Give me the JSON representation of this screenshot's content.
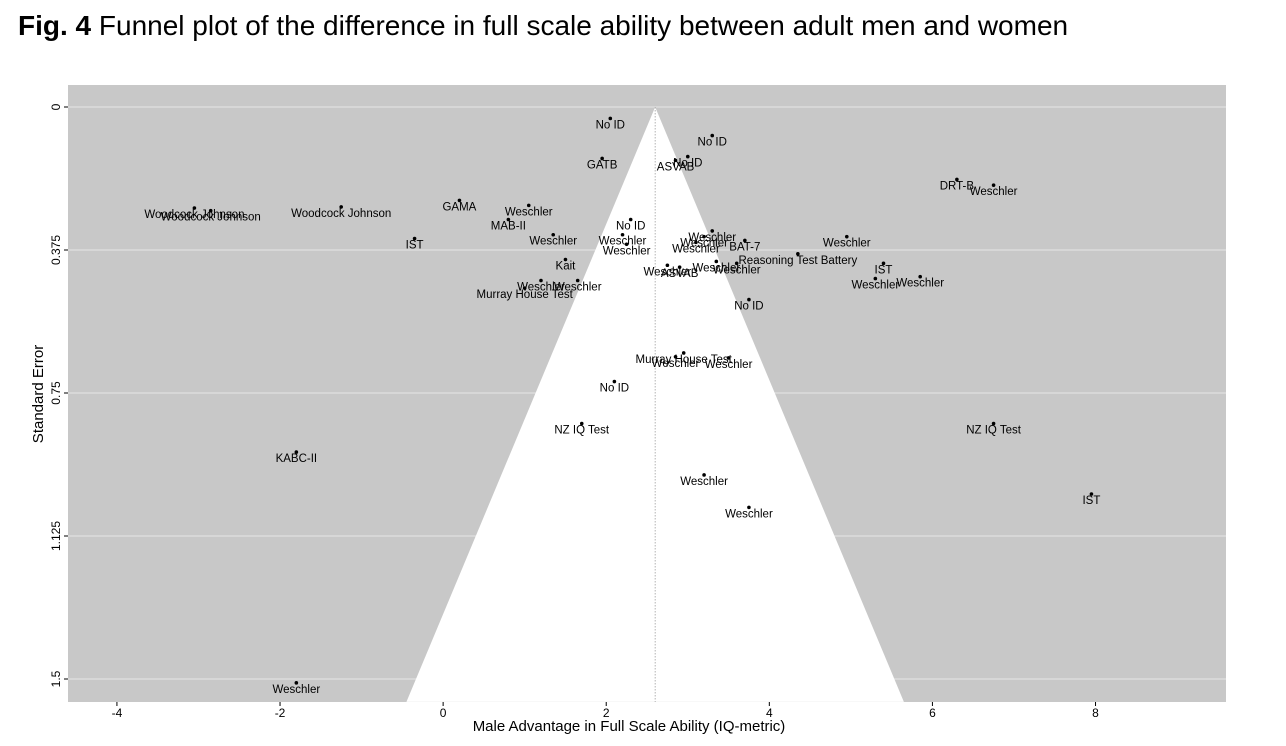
{
  "figure": {
    "label": "Fig. 4",
    "title": "Funnel plot of the difference in full scale ability between adult men and women"
  },
  "chart_data": {
    "type": "scatter",
    "variant": "funnel",
    "xlabel": "Male Advantage in Full Scale Ability (IQ-metric)",
    "ylabel": "Standard Error",
    "xlim": [
      -4.6,
      9.6
    ],
    "ylim": [
      0,
      1.56
    ],
    "y_reversed": true,
    "x_ticks": [
      -4,
      -2,
      0,
      2,
      4,
      6,
      8
    ],
    "y_ticks": [
      0,
      0.375,
      0.75,
      1.125,
      1.5
    ],
    "y_tick_labels": [
      "0",
      "0.375",
      "0.75",
      "1.125",
      "1.5"
    ],
    "funnel": {
      "center": 2.6,
      "apex_se": 0,
      "base_se": 1.56,
      "base_left": -0.45,
      "base_right": 5.65
    },
    "colors": {
      "background": "#c8c8c8",
      "funnel": "#ffffff",
      "grid": "#e6e6e6",
      "point": "#000000"
    },
    "points": [
      {
        "x": 2.05,
        "se": 0.03,
        "label": "No ID"
      },
      {
        "x": 3.3,
        "se": 0.075,
        "label": "No ID"
      },
      {
        "x": 1.95,
        "se": 0.135,
        "label": "GATB"
      },
      {
        "x": 3.0,
        "se": 0.13,
        "label": "No ID"
      },
      {
        "x": 2.85,
        "se": 0.14,
        "label": "ASVAB"
      },
      {
        "x": 6.3,
        "se": 0.19,
        "label": "DRT-B"
      },
      {
        "x": 6.75,
        "se": 0.205,
        "label": "Weschler"
      },
      {
        "x": -3.05,
        "se": 0.265,
        "label": "Woodcock Johnson"
      },
      {
        "x": -2.85,
        "se": 0.272,
        "label": "Woodcock Johnson"
      },
      {
        "x": -1.25,
        "se": 0.262,
        "label": "Woodcock Johnson"
      },
      {
        "x": 0.2,
        "se": 0.245,
        "label": "GAMA"
      },
      {
        "x": 1.05,
        "se": 0.258,
        "label": "Weschler"
      },
      {
        "x": 0.8,
        "se": 0.295,
        "label": "MAB-II"
      },
      {
        "x": 2.3,
        "se": 0.295,
        "label": "No ID"
      },
      {
        "x": 2.2,
        "se": 0.335,
        "label": "Weschler"
      },
      {
        "x": 2.25,
        "se": 0.36,
        "label": "Weschler"
      },
      {
        "x": 1.35,
        "se": 0.335,
        "label": "Weschler"
      },
      {
        "x": -0.35,
        "se": 0.345,
        "label": "IST"
      },
      {
        "x": 3.3,
        "se": 0.325,
        "label": "Weschler"
      },
      {
        "x": 3.2,
        "se": 0.34,
        "label": "Weschler"
      },
      {
        "x": 3.1,
        "se": 0.355,
        "label": "Weschler"
      },
      {
        "x": 3.7,
        "se": 0.35,
        "label": "BAT-7"
      },
      {
        "x": 4.95,
        "se": 0.34,
        "label": "Weschler"
      },
      {
        "x": 1.5,
        "se": 0.4,
        "label": "Kait"
      },
      {
        "x": 4.35,
        "se": 0.385,
        "label": "Reasoning Test Battery"
      },
      {
        "x": 2.75,
        "se": 0.415,
        "label": "Weschler"
      },
      {
        "x": 2.9,
        "se": 0.42,
        "label": "ASVAB"
      },
      {
        "x": 3.35,
        "se": 0.405,
        "label": "Weschler"
      },
      {
        "x": 3.6,
        "se": 0.41,
        "label": "Weschler"
      },
      {
        "x": 5.4,
        "se": 0.41,
        "label": "IST"
      },
      {
        "x": 1.2,
        "se": 0.455,
        "label": "Weschler"
      },
      {
        "x": 1.65,
        "se": 0.455,
        "label": "Weschler"
      },
      {
        "x": 1.0,
        "se": 0.475,
        "label": "Murray House Test"
      },
      {
        "x": 5.3,
        "se": 0.45,
        "label": "Weschler"
      },
      {
        "x": 5.85,
        "se": 0.445,
        "label": "Weschler"
      },
      {
        "x": 3.75,
        "se": 0.505,
        "label": "No ID"
      },
      {
        "x": 2.95,
        "se": 0.645,
        "label": "Murray House Test"
      },
      {
        "x": 2.85,
        "se": 0.655,
        "label": "Weschler"
      },
      {
        "x": 3.5,
        "se": 0.658,
        "label": "Weschler"
      },
      {
        "x": 2.1,
        "se": 0.72,
        "label": "No ID"
      },
      {
        "x": 1.7,
        "se": 0.83,
        "label": "NZ IQ Test"
      },
      {
        "x": 6.75,
        "se": 0.83,
        "label": "NZ IQ Test"
      },
      {
        "x": -1.8,
        "se": 0.905,
        "label": "KABC-II"
      },
      {
        "x": 3.2,
        "se": 0.965,
        "label": "Weschler"
      },
      {
        "x": 7.95,
        "se": 1.015,
        "label": "IST"
      },
      {
        "x": 3.75,
        "se": 1.05,
        "label": "Weschler"
      },
      {
        "x": -1.8,
        "se": 1.51,
        "label": "Weschler"
      }
    ]
  }
}
